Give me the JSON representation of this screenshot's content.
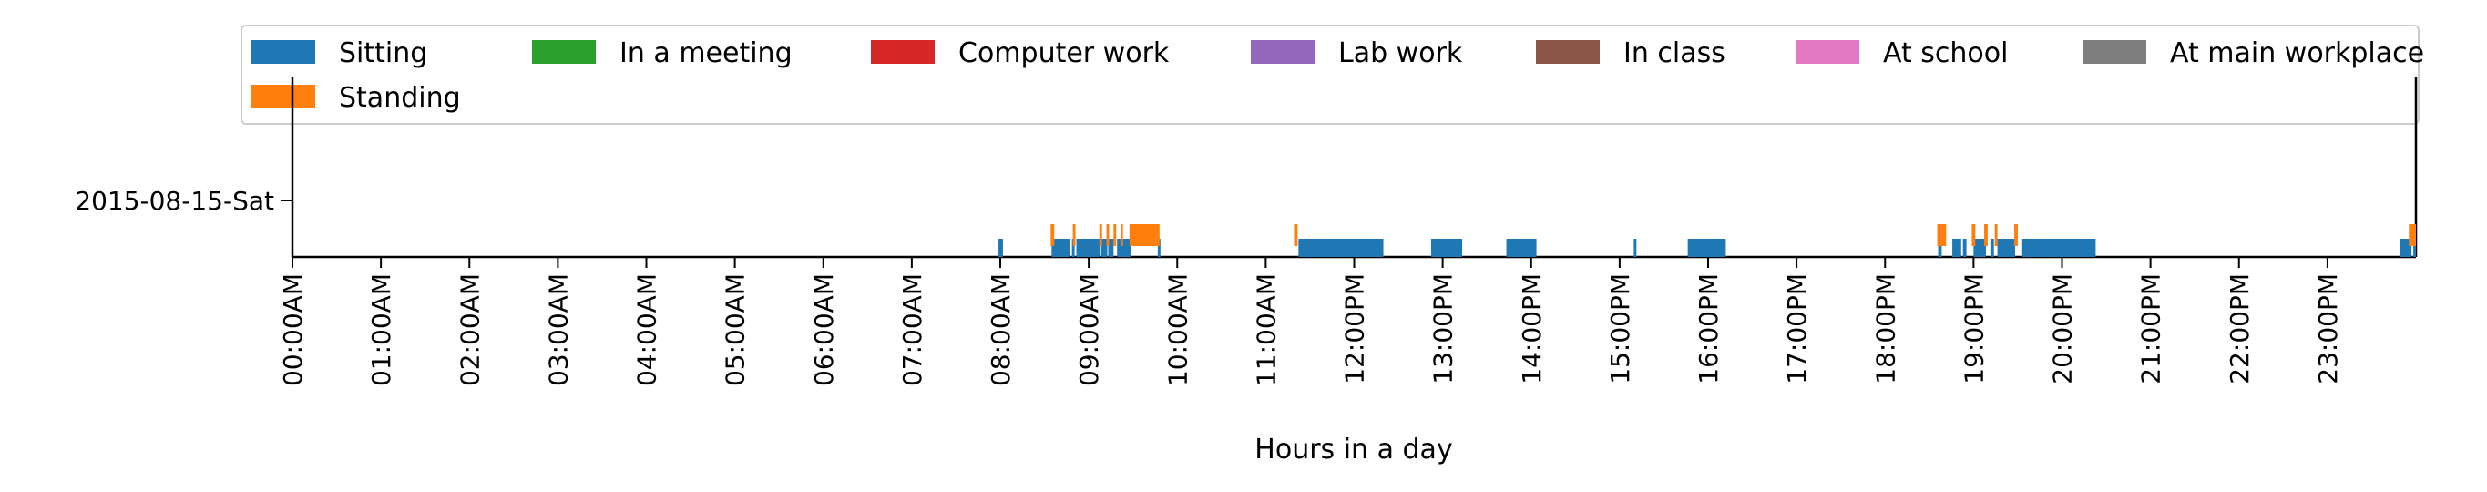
{
  "chart_data": {
    "type": "bar",
    "orientation": "horizontal-timeline",
    "title": "",
    "xlabel": "Hours in a day",
    "ylabel": "",
    "x_unit": "hours",
    "xlim": [
      0,
      24
    ],
    "grid": false,
    "legend_position": "top",
    "categories": [
      "2015-08-15-Sat"
    ],
    "x_tick_labels": [
      "00:00AM",
      "01:00AM",
      "02:00AM",
      "03:00AM",
      "04:00AM",
      "05:00AM",
      "06:00AM",
      "07:00AM",
      "08:00AM",
      "09:00AM",
      "10:00AM",
      "11:00AM",
      "12:00PM",
      "13:00PM",
      "14:00PM",
      "15:00PM",
      "16:00PM",
      "17:00PM",
      "18:00PM",
      "19:00PM",
      "20:00PM",
      "21:00PM",
      "22:00PM",
      "23:00PM"
    ],
    "series": [
      {
        "name": "Sitting",
        "color": "#1f77b4",
        "level": "low",
        "intervals": [
          [
            7.98,
            8.03
          ],
          [
            8.58,
            8.79
          ],
          [
            8.81,
            8.84
          ],
          [
            8.86,
            9.13
          ],
          [
            9.14,
            9.21
          ],
          [
            9.22,
            9.28
          ],
          [
            9.32,
            9.48
          ],
          [
            9.78,
            9.81
          ],
          [
            11.37,
            12.33
          ],
          [
            12.87,
            13.22
          ],
          [
            13.72,
            14.06
          ],
          [
            15.16,
            15.19
          ],
          [
            15.77,
            16.2
          ],
          [
            18.6,
            18.64
          ],
          [
            18.76,
            18.86
          ],
          [
            18.88,
            18.92
          ],
          [
            19.0,
            19.14
          ],
          [
            19.19,
            19.23
          ],
          [
            19.27,
            19.47
          ],
          [
            19.55,
            20.38
          ],
          [
            23.82,
            23.95
          ],
          [
            23.97,
            24.0
          ]
        ]
      },
      {
        "name": "Standing",
        "color": "#ff7f0e",
        "level": "high",
        "intervals": [
          [
            8.57,
            8.61
          ],
          [
            8.82,
            8.85
          ],
          [
            9.12,
            9.15
          ],
          [
            9.2,
            9.23
          ],
          [
            9.28,
            9.31
          ],
          [
            9.36,
            9.38
          ],
          [
            9.46,
            9.8
          ],
          [
            11.32,
            11.36
          ],
          [
            18.59,
            18.69
          ],
          [
            18.98,
            19.02
          ],
          [
            19.12,
            19.16
          ],
          [
            19.24,
            19.27
          ],
          [
            19.46,
            19.5
          ],
          [
            23.92,
            24.0
          ]
        ]
      },
      {
        "name": "In a meeting",
        "color": "#2ca02c",
        "intervals": []
      },
      {
        "name": "Computer work",
        "color": "#d62728",
        "intervals": []
      },
      {
        "name": "Lab work",
        "color": "#9467bd",
        "intervals": []
      },
      {
        "name": "In class",
        "color": "#8c564b",
        "intervals": []
      },
      {
        "name": "At school",
        "color": "#e377c2",
        "intervals": []
      },
      {
        "name": "At main workplace",
        "color": "#7f7f7f",
        "intervals": []
      }
    ]
  }
}
